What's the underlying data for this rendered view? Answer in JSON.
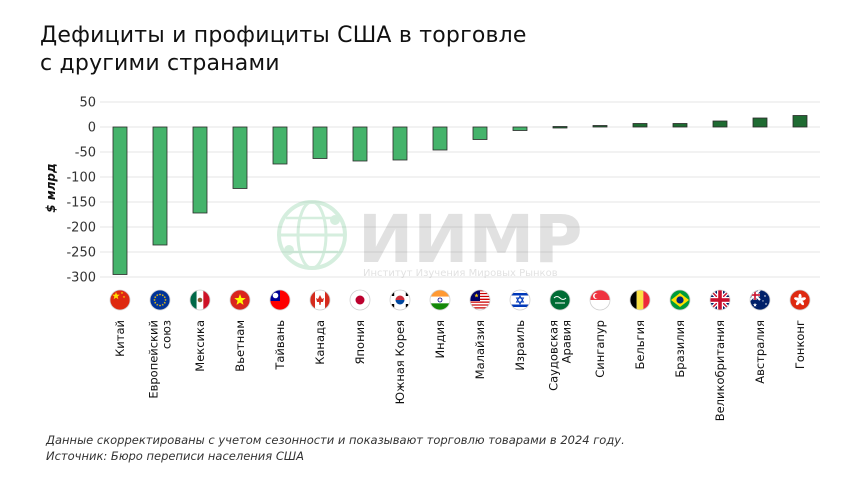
{
  "title_line1": "Дефициты и профициты США в торговле",
  "title_line2": "с другими странами",
  "note": "Данные скорректированы с учетом сезонности и показывают торговлю товарами в 2024 году.",
  "source": "Источник: Бюро переписи населения США",
  "watermark": {
    "logo_text": "ИИМР",
    "subtitle": "Институт Изучения Мировых Рынков"
  },
  "colors": {
    "deficit": "#45b36b",
    "surplus": "#1f6b32",
    "bar_stroke": "#2a2a2a",
    "grid": "#e4e4e4"
  },
  "chart_data": {
    "type": "bar",
    "title": "",
    "xlabel": "",
    "ylabel": "$ млрд",
    "ylim": [
      -300,
      50
    ],
    "yticks": [
      50,
      0,
      -50,
      -100,
      -150,
      -200,
      -250,
      -300
    ],
    "grid": true,
    "categories": [
      "Китай",
      "Европейский союз",
      "Мексика",
      "Вьетнам",
      "Тайвань",
      "Канада",
      "Япония",
      "Южная Корея",
      "Индия",
      "Малайзия",
      "Израиль",
      "Саудовская Аравия",
      "Сингапур",
      "Бельгия",
      "Бразилия",
      "Великобритания",
      "Австралия",
      "Гонконг"
    ],
    "label_lines": [
      [
        "Китай"
      ],
      [
        "Европейский",
        "союз"
      ],
      [
        "Мексика"
      ],
      [
        "Вьетнам"
      ],
      [
        "Тайвань"
      ],
      [
        "Канада"
      ],
      [
        "Япония"
      ],
      [
        "Южная Корея"
      ],
      [
        "Индия"
      ],
      [
        "Малайзия"
      ],
      [
        "Израиль"
      ],
      [
        "Саудовская",
        "Аравия"
      ],
      [
        "Сингапур"
      ],
      [
        "Бельгия"
      ],
      [
        "Бразилия"
      ],
      [
        "Великобритания"
      ],
      [
        "Австралия"
      ],
      [
        "Гонконг"
      ]
    ],
    "flags": [
      "flag-china-icon",
      "flag-eu-icon",
      "flag-mexico-icon",
      "flag-vietnam-icon",
      "flag-taiwan-icon",
      "flag-canada-icon",
      "flag-japan-icon",
      "flag-south-korea-icon",
      "flag-india-icon",
      "flag-malaysia-icon",
      "flag-israel-icon",
      "flag-saudi-arabia-icon",
      "flag-singapore-icon",
      "flag-belgium-icon",
      "flag-brazil-icon",
      "flag-uk-icon",
      "flag-australia-icon",
      "flag-hong-kong-icon"
    ],
    "values": [
      -295,
      -236,
      -172,
      -123,
      -74,
      -63,
      -68,
      -66,
      -46,
      -25,
      -7,
      1,
      3,
      7,
      7,
      12,
      18,
      23
    ]
  }
}
